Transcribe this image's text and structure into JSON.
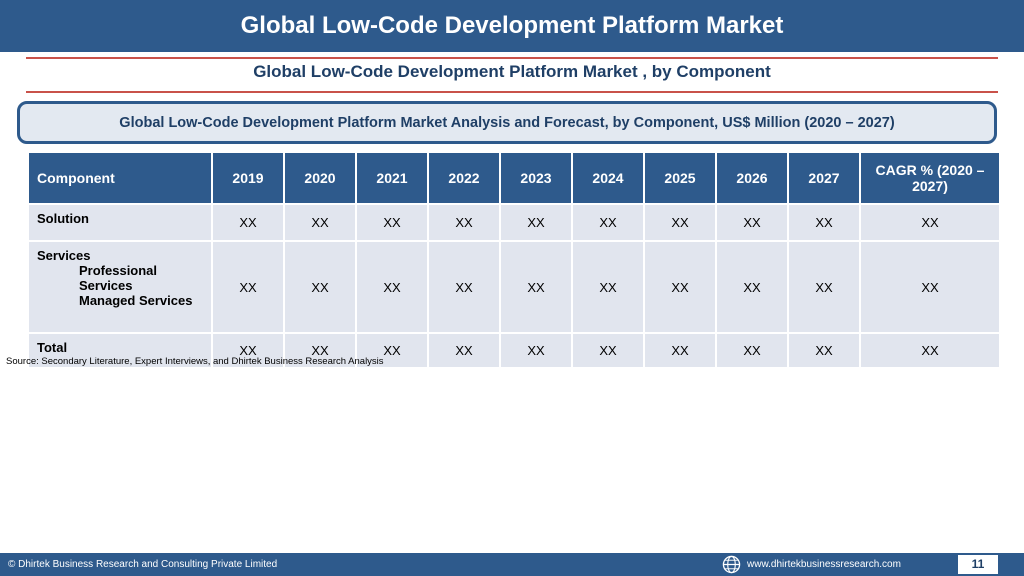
{
  "header": {
    "title": "Global Low-Code Development Platform Market"
  },
  "subtitle": "Global Low-Code Development Platform Market , by Component",
  "banner": "Global Low-Code Development Platform Market  Analysis and Forecast, by Component, US$ Million (2020 – 2027)",
  "table": {
    "headers": [
      "Component",
      "2019",
      "2020",
      "2021",
      "2022",
      "2023",
      "2024",
      "2025",
      "2026",
      "2027",
      "CAGR % (2020 – 2027)"
    ],
    "rows": [
      {
        "label": "Solution",
        "subitems": [],
        "values": [
          "XX",
          "XX",
          "XX",
          "XX",
          "XX",
          "XX",
          "XX",
          "XX",
          "XX",
          "XX"
        ]
      },
      {
        "label": "Services",
        "subitems": [
          "Professional Services",
          "Managed Services"
        ],
        "values": [
          "XX",
          "XX",
          "XX",
          "XX",
          "XX",
          "XX",
          "XX",
          "XX",
          "XX",
          "XX"
        ]
      },
      {
        "label": "Total",
        "subitems": [],
        "values": [
          "XX",
          "XX",
          "XX",
          "XX",
          "XX",
          "XX",
          "XX",
          "XX",
          "XX",
          "XX"
        ]
      }
    ]
  },
  "source": "Source: Secondary Literature, Expert Interviews, and Dhirtek Business Research Analysis",
  "footer": {
    "copyright": "© Dhirtek Business Research and Consulting Private Limited",
    "website": "www.dhirtekbusinessresearch.com",
    "page_number": "11",
    "icon": "globe-icon"
  },
  "colors": {
    "primary": "#2e5a8c",
    "accent_rule": "#c9524a",
    "cell_bg": "#e1e5ee",
    "banner_bg": "#e3e9f1"
  }
}
